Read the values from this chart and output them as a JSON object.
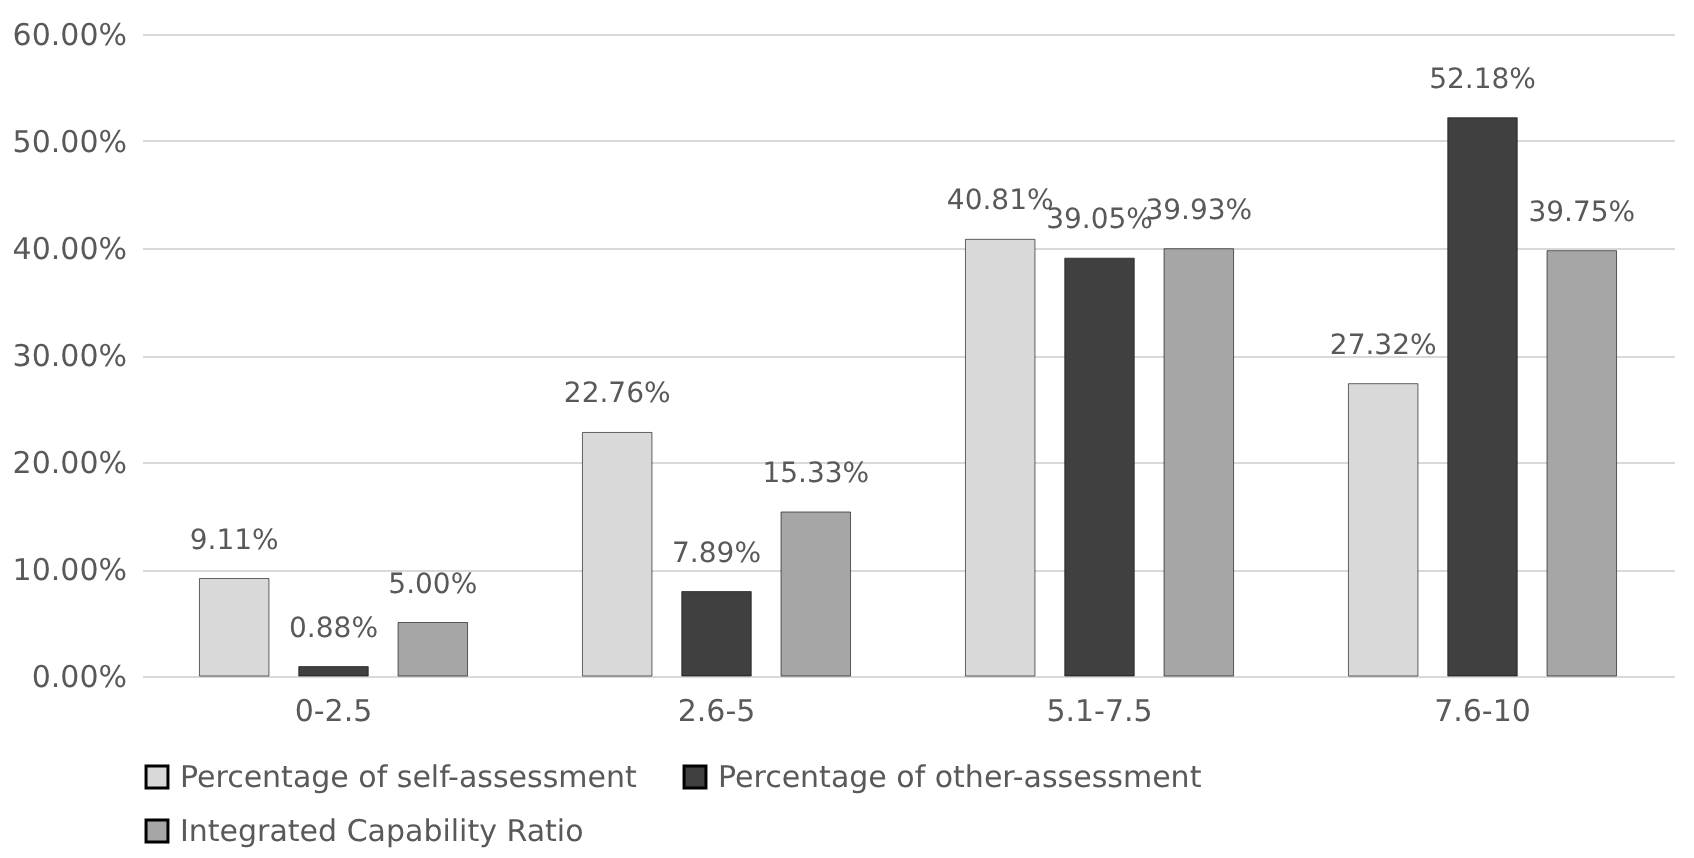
{
  "chart_data": {
    "type": "bar",
    "categories": [
      "0-2.5",
      "2.6-5",
      "5.1-7.5",
      "7.6-10"
    ],
    "series": [
      {
        "name": "Percentage of self-assessment",
        "color": "#d9d9d9",
        "values": [
          9.11,
          22.76,
          40.81,
          27.32
        ],
        "value_labels": [
          "9.11%",
          "22.76%",
          "40.81%",
          "27.32%"
        ]
      },
      {
        "name": "Percentage of other-assessment",
        "color": "#404040",
        "values": [
          0.88,
          7.89,
          39.05,
          52.18
        ],
        "value_labels": [
          "0.88%",
          "7.89%",
          "39.05%",
          "52.18%"
        ]
      },
      {
        "name": "Integrated Capability Ratio",
        "color": "#a6a6a6",
        "values": [
          5.0,
          15.33,
          39.93,
          39.75
        ],
        "value_labels": [
          "5.00%",
          "15.33%",
          "39.93%",
          "39.75%"
        ]
      }
    ],
    "ylim": [
      0,
      60
    ],
    "yticks": [
      {
        "value": 0,
        "label": "0.00%"
      },
      {
        "value": 10,
        "label": "10.00%"
      },
      {
        "value": 20,
        "label": "20.00%"
      },
      {
        "value": 30,
        "label": "30.00%"
      },
      {
        "value": 40,
        "label": "40.00%"
      },
      {
        "value": 50,
        "label": "50.00%"
      },
      {
        "value": 60,
        "label": "60.00%"
      }
    ],
    "grid": "y",
    "legend": "bottom"
  }
}
